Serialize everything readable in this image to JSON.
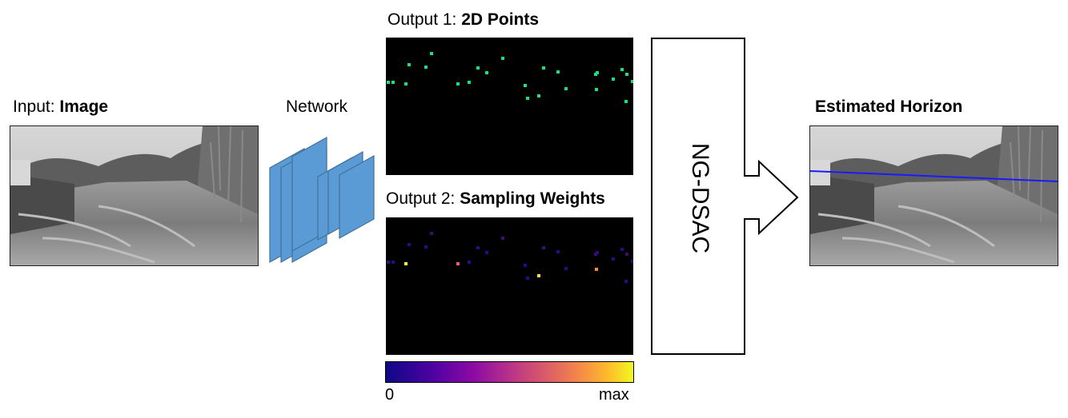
{
  "input": {
    "prefix": "Input: ",
    "bold": "Image"
  },
  "network": {
    "label": "Network"
  },
  "output1": {
    "prefix": "Output 1: ",
    "bold": "2D Points"
  },
  "output2": {
    "prefix": "Output 2: ",
    "bold": "Sampling Weights"
  },
  "colorbar": {
    "min_label": "0",
    "max_label": "max"
  },
  "ngdsac": {
    "label": "NG-DSAC"
  },
  "result": {
    "label": "Estimated Horizon"
  },
  "colors": {
    "point_green": "#19e07a",
    "network_fill": "#5b9bd5",
    "network_stroke": "#41719c",
    "horizon_line": "#1a1aff",
    "panel_bg": "#000000"
  }
}
